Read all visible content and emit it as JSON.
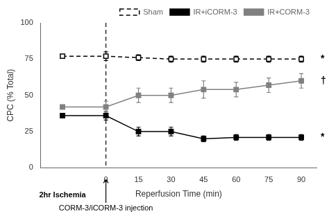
{
  "chart_data": {
    "type": "line",
    "x": [
      -20,
      0,
      15,
      30,
      45,
      60,
      75,
      90
    ],
    "series": [
      {
        "name": "Sham",
        "color": "#000000",
        "marker": "open_square",
        "line_style": "dashed",
        "values": [
          77,
          77,
          76,
          75,
          75,
          75,
          75,
          75
        ],
        "errors": [
          null,
          3,
          2,
          2,
          2,
          2,
          2,
          2
        ]
      },
      {
        "name": "IR+iCORM-3",
        "color": "#000000",
        "marker": "square",
        "line_style": "solid",
        "values": [
          36,
          36,
          25,
          25,
          20,
          21,
          21,
          21
        ],
        "errors": [
          null,
          3,
          3,
          3,
          2,
          2,
          2,
          2
        ]
      },
      {
        "name": "IR+CORM-3",
        "color": "#808080",
        "marker": "square",
        "line_style": "solid",
        "values": [
          42,
          42,
          50,
          50,
          54,
          54,
          57,
          60
        ],
        "errors": [
          null,
          4,
          5,
          5,
          6,
          5,
          5,
          5
        ]
      }
    ],
    "xlabel": "Reperfusion Time (min)",
    "ylabel": "CPC (% Total)",
    "xlim": [
      -30,
      97
    ],
    "xticks": [
      0,
      15,
      30,
      45,
      60,
      75,
      90
    ],
    "ylim": [
      0,
      100
    ],
    "yticks": [
      0,
      25,
      50,
      75,
      100
    ],
    "grid": false,
    "legend": "upper right",
    "annotations": [
      {
        "text": "*",
        "series": "Sham"
      },
      {
        "text": "†",
        "series": "IR+CORM-3"
      },
      {
        "text": "*",
        "series": "IR+iCORM-3"
      },
      {
        "text": "2hr Ischemia",
        "x": -20
      },
      {
        "text": "CORM-3/iCORM-3 injection",
        "x": 0,
        "arrow": true
      },
      {
        "x": 0,
        "line_style": "dashed"
      }
    ]
  }
}
